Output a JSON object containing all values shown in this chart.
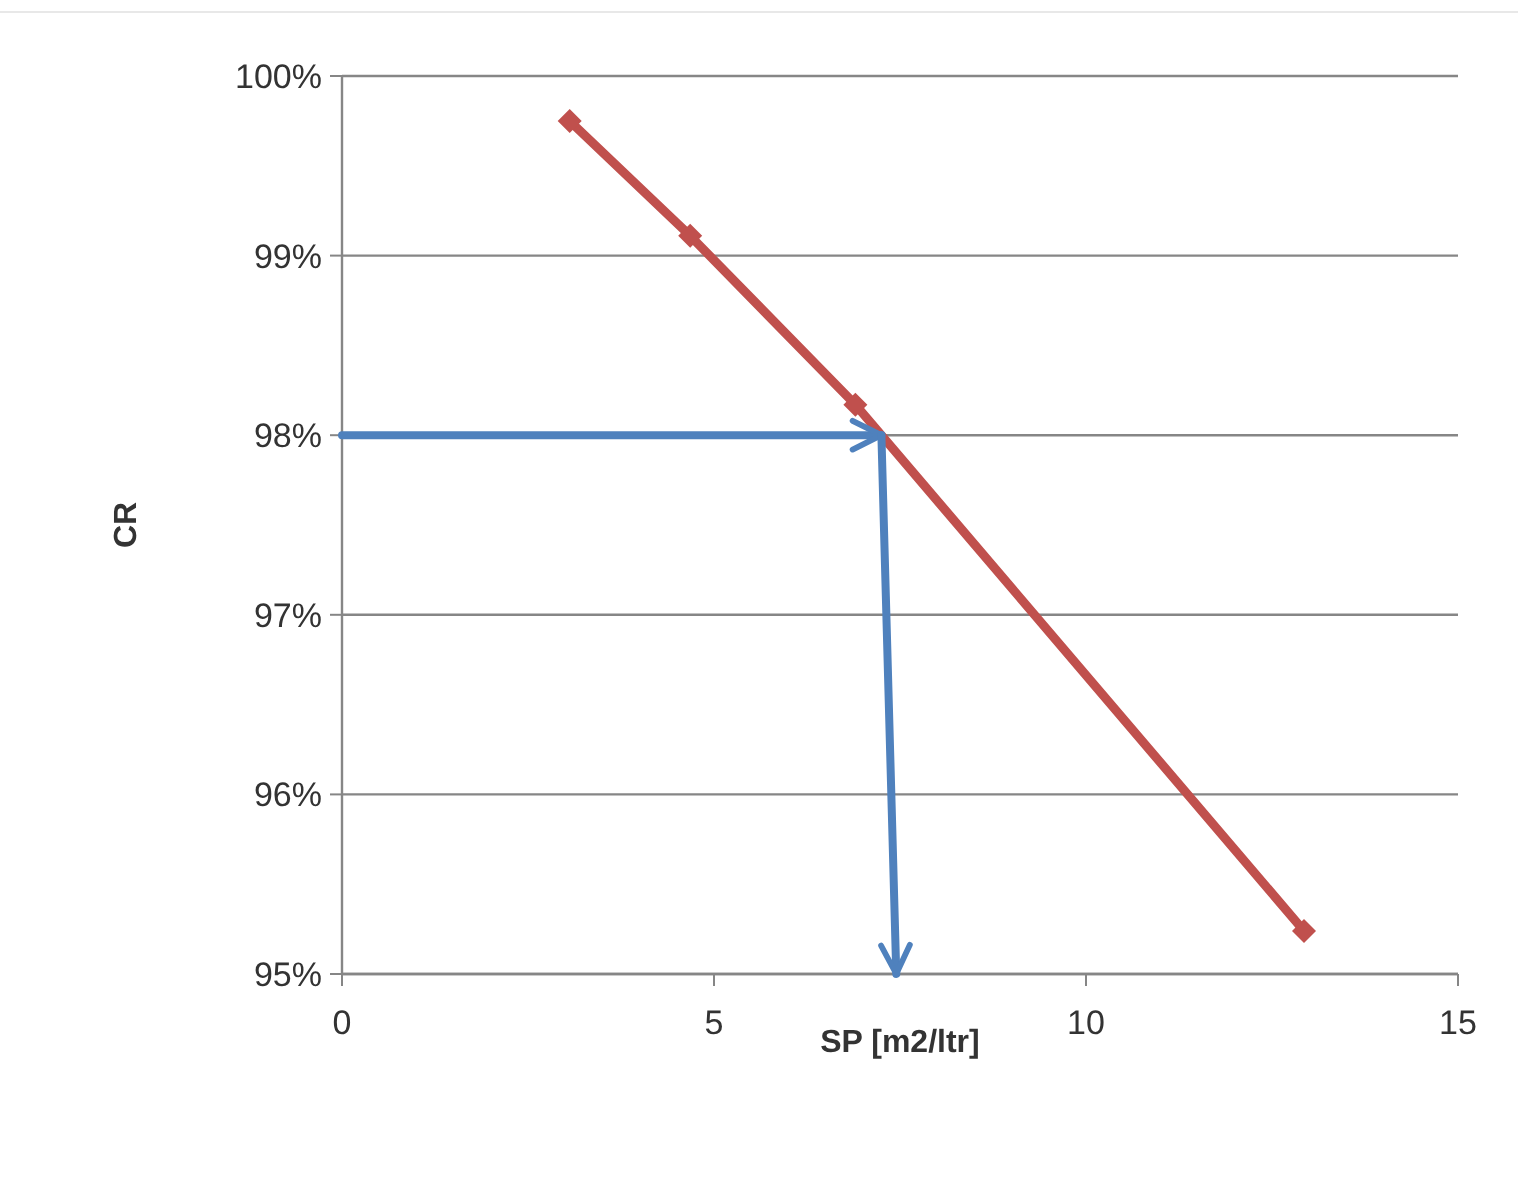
{
  "chart_data": {
    "type": "line",
    "xlabel": "SP [m2/ltr]",
    "ylabel": "CR",
    "xlim": [
      0,
      15
    ],
    "xticks": [
      0,
      5,
      10,
      15
    ],
    "ylim": [
      95,
      100
    ],
    "yticks": [
      {
        "value": 95,
        "label": "95%"
      },
      {
        "value": 96,
        "label": "96%"
      },
      {
        "value": 97,
        "label": "97%"
      },
      {
        "value": 98,
        "label": "98%"
      },
      {
        "value": 99,
        "label": "99%"
      },
      {
        "value": 100,
        "label": "100%"
      }
    ],
    "grid": "y",
    "marker": "diamond",
    "series": [
      {
        "color": "#c0504d",
        "x": [
          3.06,
          4.68,
          6.9,
          12.93
        ],
        "values": [
          99.75,
          99.11,
          98.17,
          95.24
        ]
      },
      {
        "color": "#4f81bd",
        "marker": "none",
        "x": [
          0,
          7.25
        ],
        "values": [
          98,
          98
        ]
      },
      {
        "color": "#4f81bd",
        "marker": "none",
        "x": [
          7.25,
          7.45
        ],
        "values": [
          98,
          95
        ]
      }
    ]
  }
}
